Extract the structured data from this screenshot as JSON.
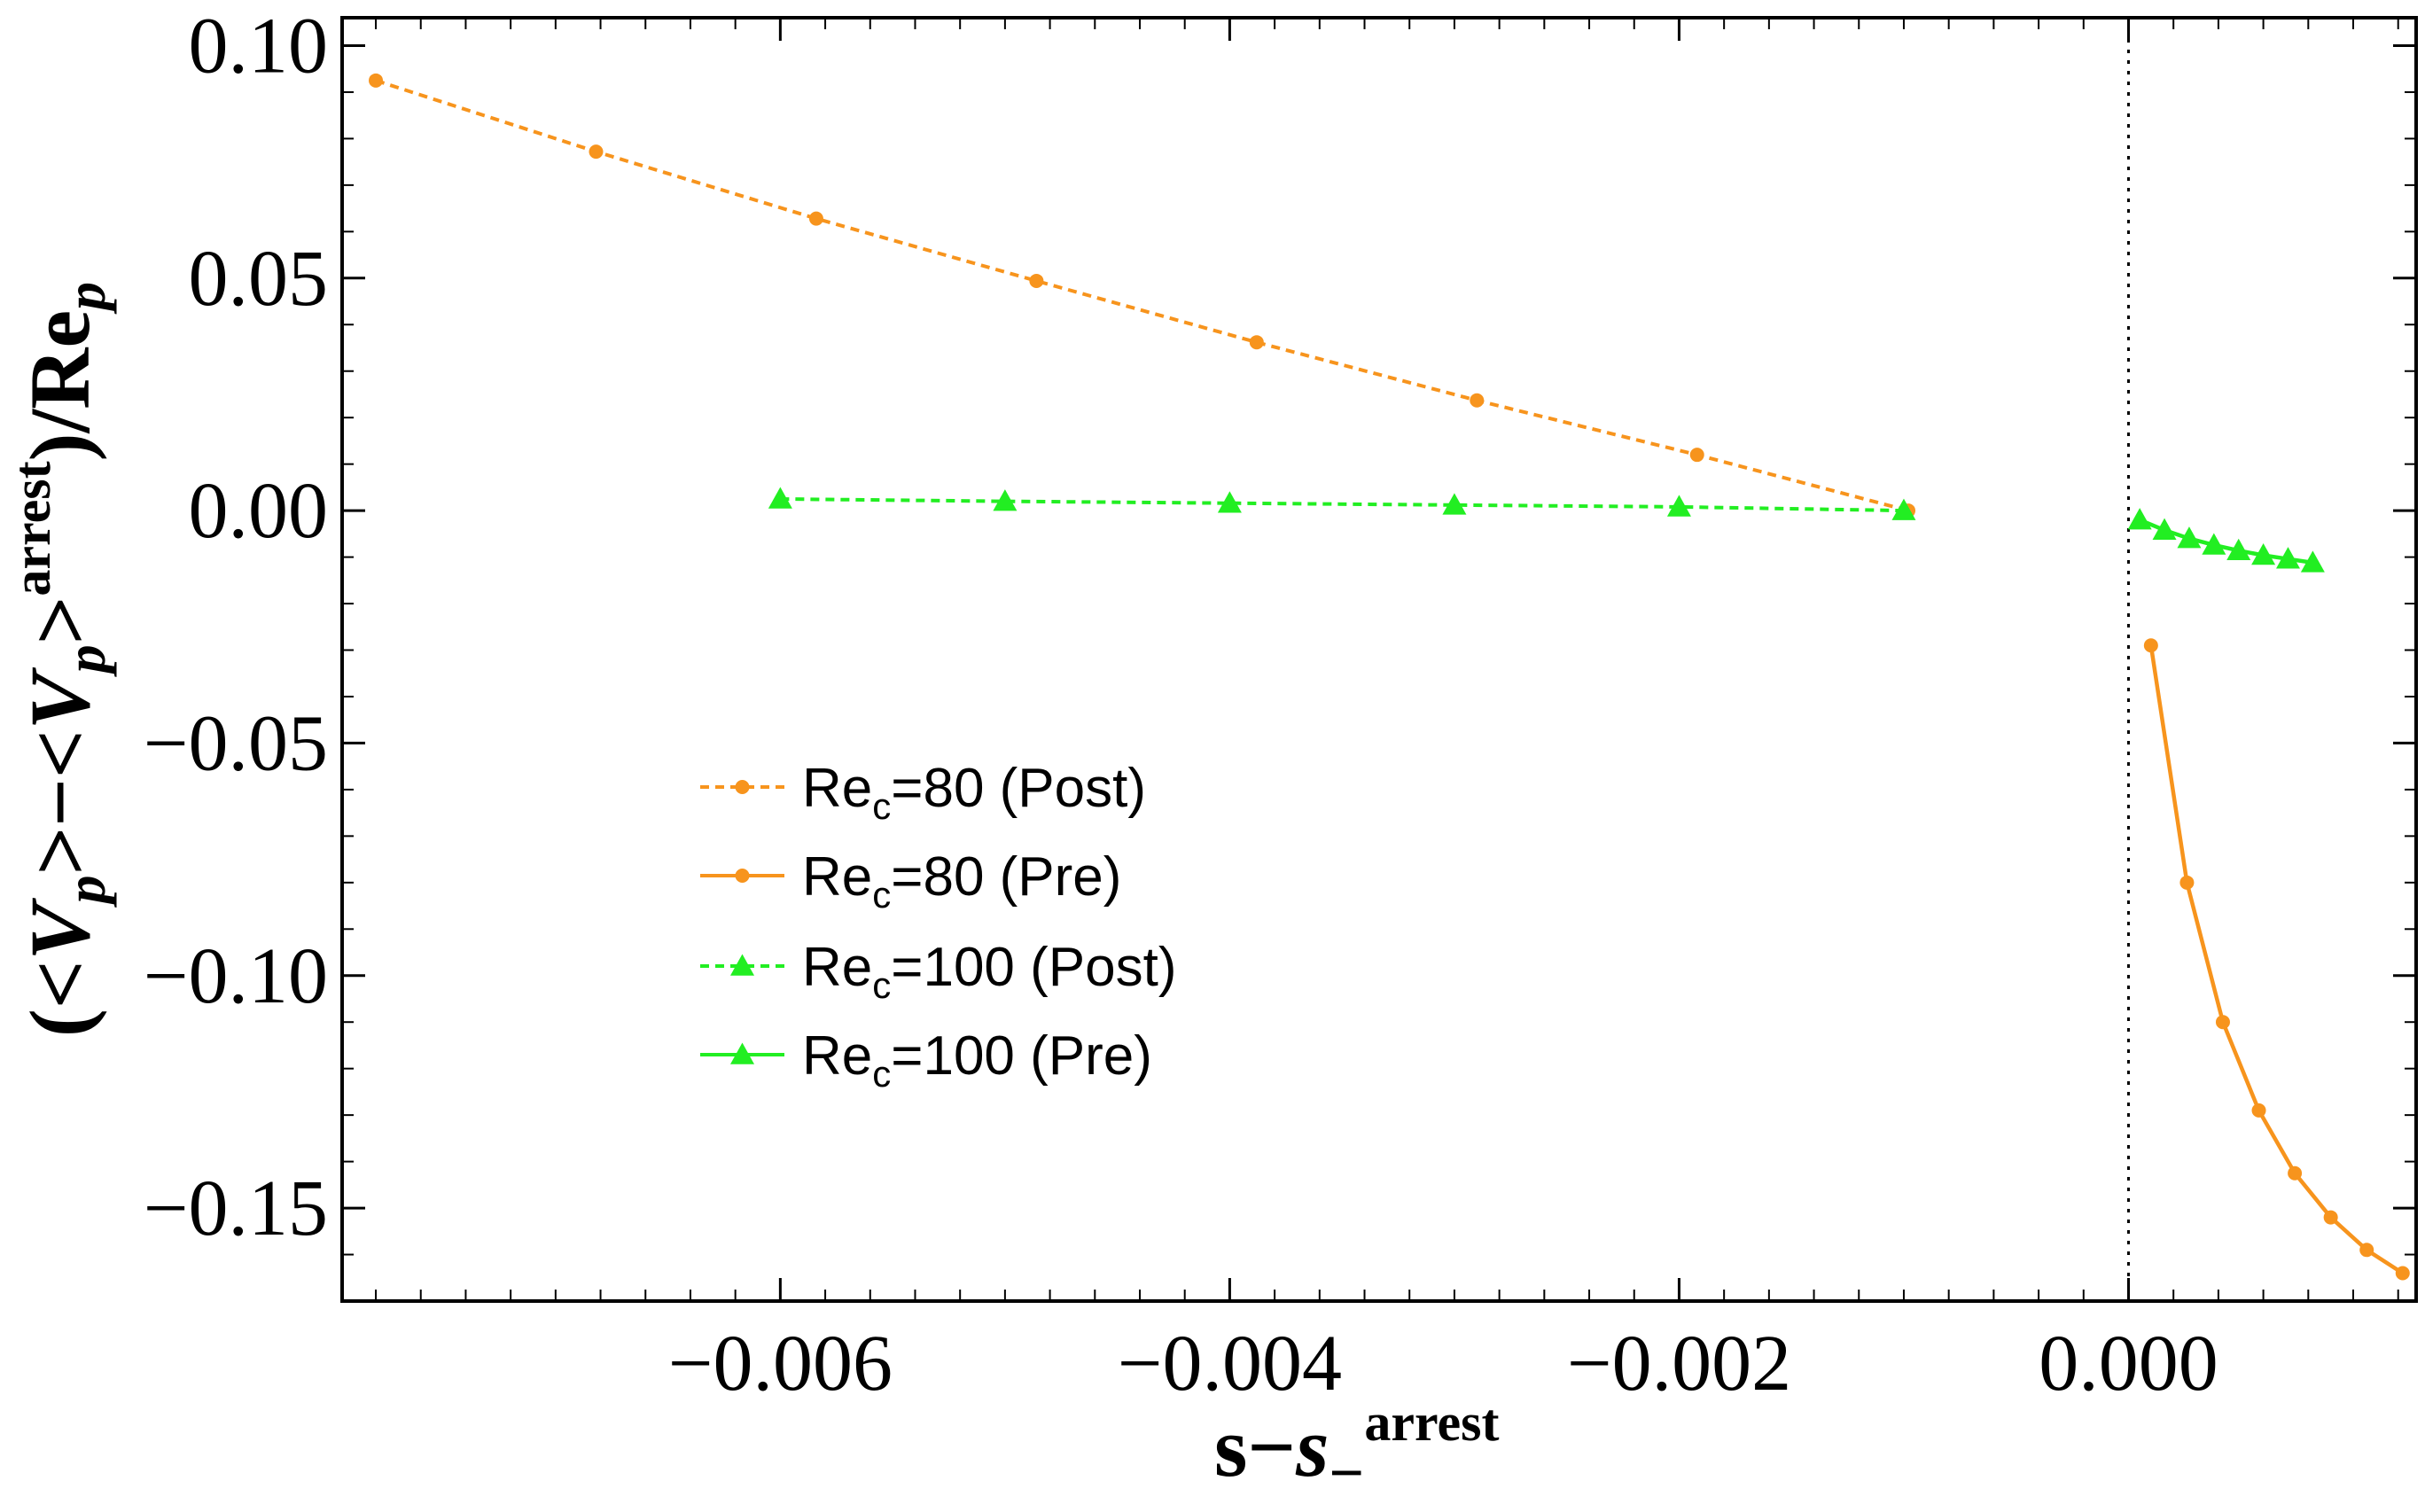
{
  "chart_data": {
    "type": "line",
    "title": "",
    "xlabel": {
      "main": "s−",
      "italic": "s",
      "sub": "−",
      "sup": "arrest"
    },
    "ylabel": {
      "open": "(<",
      "v": "V",
      "p": "p",
      "mid": ">−<",
      "close": ">",
      "sup": "arrest",
      "tail": ")/Re",
      "tail_sub": "p"
    },
    "xlim": [
      -0.00795,
      0.00128
    ],
    "ylim": [
      -0.17,
      0.106
    ],
    "x_ticks": [
      {
        "value": -0.006,
        "label": "−0.006"
      },
      {
        "value": -0.004,
        "label": "−0.004"
      },
      {
        "value": -0.002,
        "label": "−0.002"
      },
      {
        "value": 0.0,
        "label": "0.000"
      }
    ],
    "y_ticks": [
      {
        "value": 0.1,
        "label": "0.10"
      },
      {
        "value": 0.05,
        "label": "0.05"
      },
      {
        "value": 0.0,
        "label": "0.00"
      },
      {
        "value": -0.05,
        "label": "−0.05"
      },
      {
        "value": -0.1,
        "label": "−0.10"
      },
      {
        "value": -0.15,
        "label": "−0.15"
      }
    ],
    "vertical_reference_x": 0.0,
    "legend_position": "center-left",
    "series": [
      {
        "name": "Re_c=80 (Post)",
        "legend_main": "Re",
        "legend_sub": "c",
        "legend_rest": "=80 (Post)",
        "color": "#f7941d",
        "dash": true,
        "marker": "circle",
        "x": [
          -0.0078,
          -0.00682,
          -0.00584,
          -0.00486,
          -0.00388,
          -0.0029,
          -0.00192,
          -0.00098
        ],
        "y": [
          0.0925,
          0.0772,
          0.0628,
          0.0494,
          0.0362,
          0.0237,
          0.012,
          0.0
        ]
      },
      {
        "name": "Re_c=80 (Pre)",
        "legend_main": "Re",
        "legend_sub": "c",
        "legend_rest": "=80 (Pre)",
        "color": "#f7941d",
        "dash": false,
        "marker": "circle",
        "x": [
          0.0001,
          0.00026,
          0.00042,
          0.00058,
          0.00074,
          0.0009,
          0.00106,
          0.00122
        ],
        "y": [
          -0.029,
          -0.08,
          -0.11,
          -0.129,
          -0.1425,
          -0.152,
          -0.159,
          -0.164
        ]
      },
      {
        "name": "Re_c=100 (Post)",
        "legend_main": "Re",
        "legend_sub": "c",
        "legend_rest": "=100 (Post)",
        "color": "#22ee22",
        "dash": true,
        "marker": "triangle",
        "x": [
          -0.006,
          -0.005,
          -0.004,
          -0.003,
          -0.002,
          -0.001
        ],
        "y": [
          0.0025,
          0.002,
          0.0016,
          0.0012,
          0.0008,
          0.0
        ]
      },
      {
        "name": "Re_c=100 (Pre)",
        "legend_main": "Re",
        "legend_sub": "c",
        "legend_rest": "=100 (Pre)",
        "color": "#22ee22",
        "dash": false,
        "marker": "triangle",
        "x": [
          5e-05,
          0.00016,
          0.00027,
          0.00038,
          0.00049,
          0.0006,
          0.00071,
          0.00082
        ],
        "y": [
          -0.002,
          -0.0042,
          -0.006,
          -0.0074,
          -0.0086,
          -0.0096,
          -0.0104,
          -0.0112
        ]
      }
    ]
  }
}
